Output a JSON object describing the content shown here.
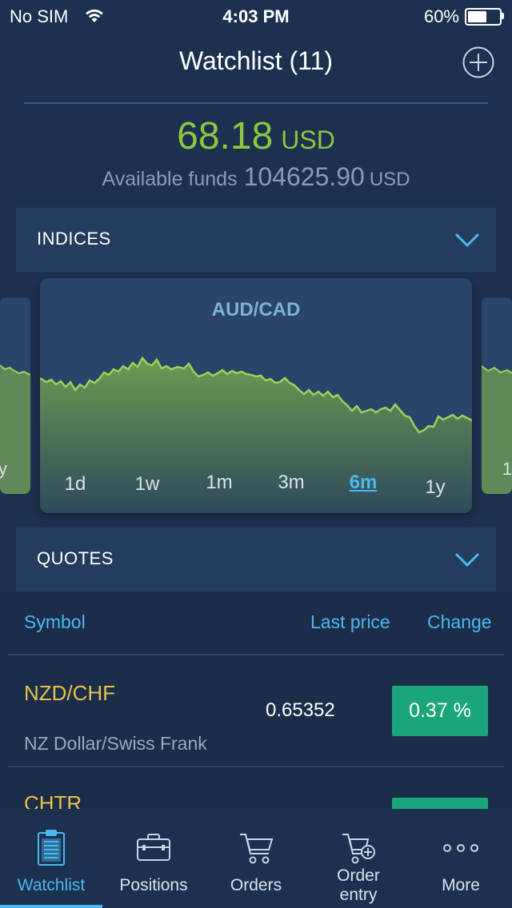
{
  "status_bar": {
    "carrier": "No SIM",
    "time": "4:03 PM",
    "battery": "60%",
    "battery_level": 0.6
  },
  "header": {
    "title": "Watchlist (11)"
  },
  "balance": {
    "value": "68.18",
    "currency": "USD"
  },
  "funds": {
    "label": "Available funds",
    "value": "104625.90",
    "currency": "USD"
  },
  "sections": {
    "indices": "INDICES",
    "quotes": "QUOTES"
  },
  "chart_card": {
    "pair": "AUD/CAD",
    "periods": [
      "1d",
      "1w",
      "1m",
      "3m",
      "6m",
      "1y"
    ],
    "active_period": "6m"
  },
  "quotes_table": {
    "columns": {
      "symbol": "Symbol",
      "last_price": "Last price",
      "change": "Change"
    },
    "rows": [
      {
        "symbol": "NZD/CHF",
        "description": "NZ Dollar/Swiss Frank",
        "last_price": "0.65352",
        "change": "0.37 %"
      },
      {
        "symbol": "CHTR",
        "description": "",
        "last_price": "",
        "change": ""
      }
    ]
  },
  "tab_bar": {
    "items": [
      {
        "label": "Watchlist",
        "icon": "clipboard-icon"
      },
      {
        "label": "Positions",
        "icon": "briefcase-icon"
      },
      {
        "label": "Orders",
        "icon": "cart-icon"
      },
      {
        "label": "Order entry",
        "icon": "cart-add-icon"
      },
      {
        "label": "More",
        "icon": "more-dots-icon"
      }
    ],
    "active": "Watchlist"
  },
  "colors": {
    "background": "#1c3150",
    "accent": "#4ab8f0",
    "positive": "#8cc63f",
    "badge_green": "#1ba57a",
    "symbol_yellow": "#e6c14a"
  }
}
